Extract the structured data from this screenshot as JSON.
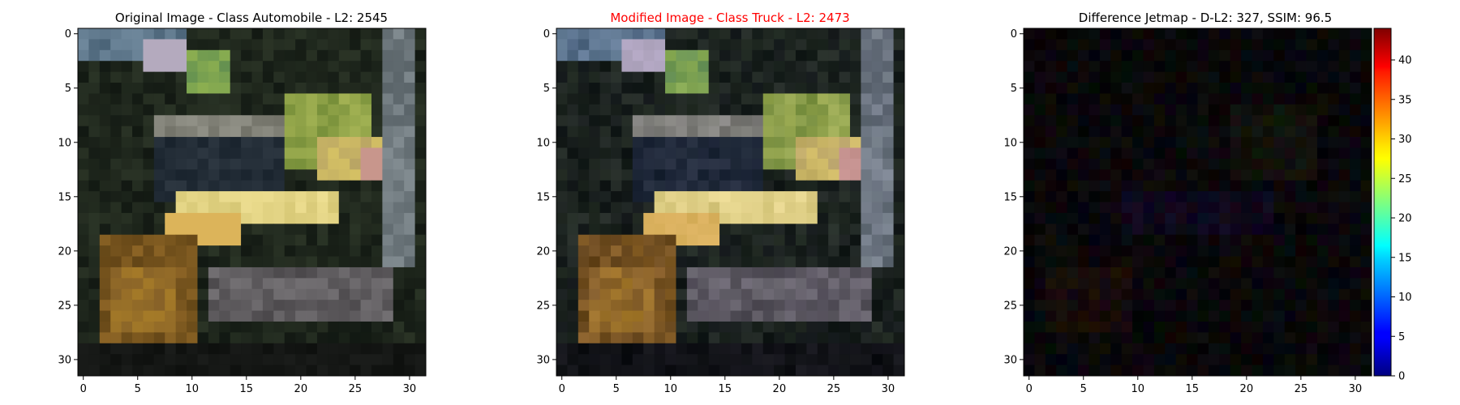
{
  "figure": {
    "panels": [
      {
        "title": "Original Image - Class Automobile - L2: 2545",
        "title_color": "#000000",
        "kind": "original",
        "x_ticks": [
          "0",
          "5",
          "10",
          "15",
          "20",
          "25",
          "30"
        ],
        "y_ticks": [
          "0",
          "5",
          "10",
          "15",
          "20",
          "25",
          "30"
        ]
      },
      {
        "title": "Modified Image - Class Truck - L2: 2473",
        "title_color": "#ff0000",
        "kind": "modified",
        "x_ticks": [
          "0",
          "5",
          "10",
          "15",
          "20",
          "25",
          "30"
        ],
        "y_ticks": [
          "0",
          "5",
          "10",
          "15",
          "20",
          "25",
          "30"
        ]
      },
      {
        "title": "Difference Jetmap - D-L2: 327, SSIM: 96.5",
        "title_color": "#000000",
        "kind": "difference",
        "x_ticks": [
          "0",
          "5",
          "10",
          "15",
          "20",
          "25",
          "30"
        ],
        "y_ticks": [
          "0",
          "5",
          "10",
          "15",
          "20",
          "25",
          "30"
        ]
      }
    ],
    "colorbar": {
      "colormap": "jet",
      "range": [
        0,
        44
      ],
      "ticks": [
        "0",
        "5",
        "10",
        "15",
        "20",
        "25",
        "30",
        "35",
        "40"
      ]
    }
  }
}
